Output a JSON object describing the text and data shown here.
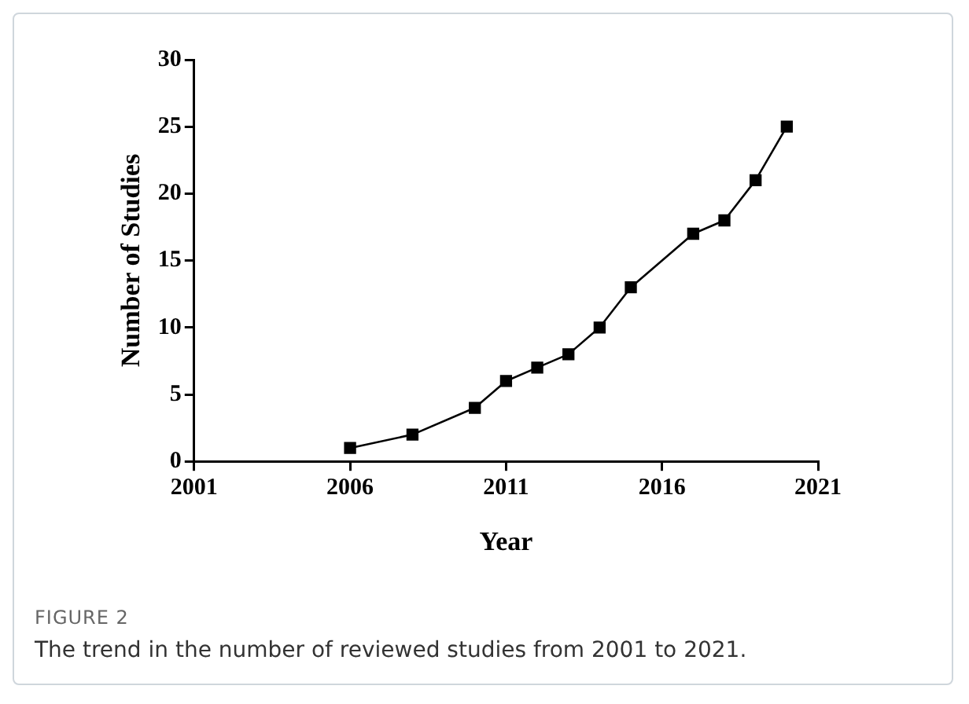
{
  "chart_data": {
    "type": "line",
    "xlabel": "Year",
    "ylabel": "Number of Studies",
    "x": [
      2006,
      2008,
      2010,
      2011,
      2012,
      2013,
      2014,
      2015,
      2017,
      2018,
      2019,
      2020
    ],
    "series": [
      {
        "color": "#000000",
        "values": [
          1,
          2,
          4,
          6,
          7,
          8,
          10,
          13,
          17,
          18,
          21,
          25
        ]
      }
    ],
    "xlim": [
      2001,
      2021
    ],
    "xticks": [
      2001,
      2006,
      2011,
      2016,
      2021
    ],
    "ylim": [
      0,
      30
    ],
    "yticks": [
      0,
      5,
      10,
      15,
      20,
      25,
      30
    ],
    "grid": false,
    "legend": false,
    "marker": "square",
    "line_style": "solid",
    "annotations": [
      "FIGURE 2",
      "The trend in the number of reviewed studies from 2001 to 2021."
    ]
  }
}
